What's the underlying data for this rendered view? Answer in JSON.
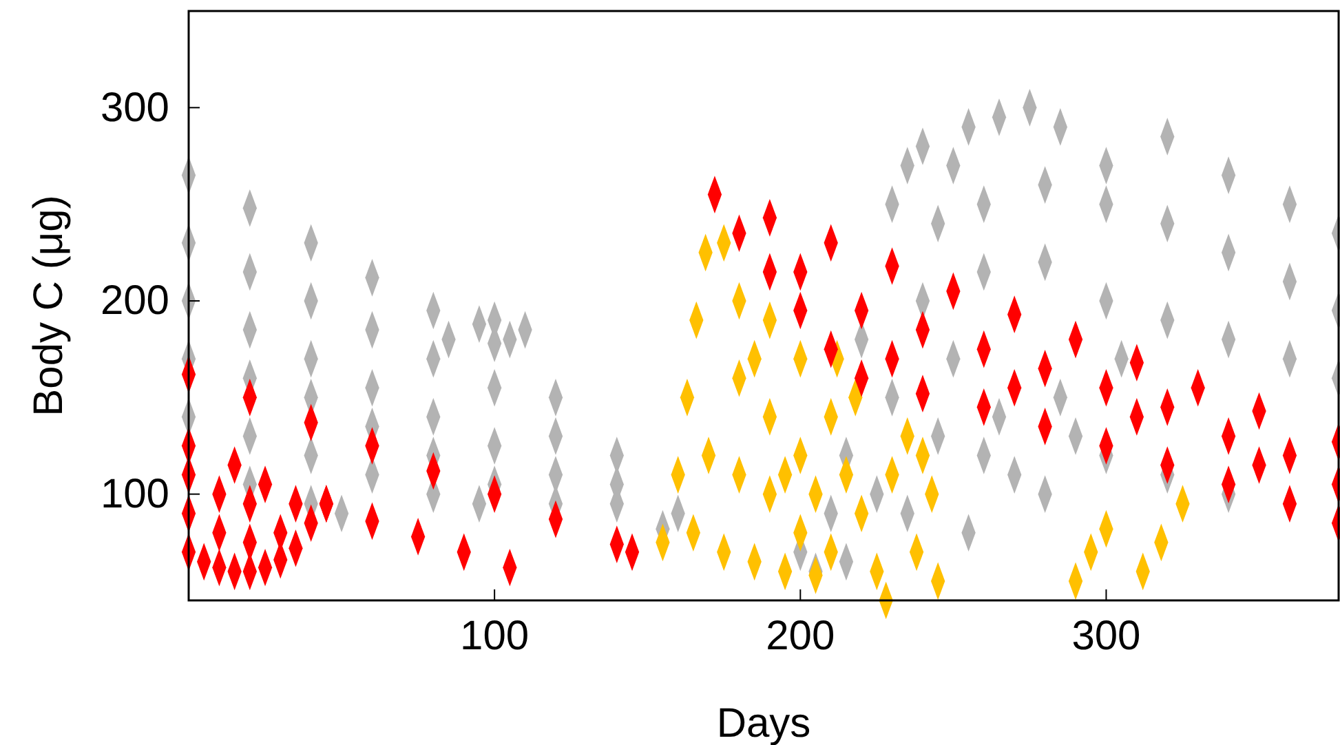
{
  "chart_data": {
    "type": "scatter",
    "xlabel": "Days",
    "ylabel": "Body C (μg)",
    "xlim": [
      0,
      376
    ],
    "ylim": [
      45,
      350
    ],
    "xticks": [
      100,
      200,
      300
    ],
    "yticks": [
      100,
      200,
      300
    ],
    "grid": false,
    "marker": "diamond",
    "series": [
      {
        "color": "#b3b3b3",
        "x": [
          0,
          20,
          40,
          60,
          80,
          100,
          120,
          140,
          160,
          0,
          20,
          40,
          60,
          80,
          100,
          120,
          140,
          155,
          0,
          20,
          40,
          60,
          80,
          100,
          120,
          140,
          0,
          20,
          40,
          60,
          80,
          100,
          120,
          0,
          20,
          40,
          60,
          80,
          95,
          20,
          40,
          50,
          85,
          95,
          100,
          105,
          110,
          205,
          215,
          220,
          230,
          235,
          240,
          250,
          255,
          265,
          275,
          285,
          300,
          320,
          340,
          360,
          376,
          245,
          260,
          280,
          300,
          320,
          340,
          360,
          376,
          240,
          260,
          280,
          300,
          320,
          340,
          360,
          376,
          230,
          245,
          250,
          265,
          270,
          280,
          290,
          300,
          320,
          340,
          225,
          235,
          255,
          260,
          285,
          305,
          200,
          210,
          215
        ],
        "values": [
          265,
          248,
          230,
          212,
          195,
          178,
          150,
          120,
          90,
          230,
          215,
          200,
          185,
          170,
          155,
          130,
          105,
          82,
          200,
          185,
          170,
          155,
          140,
          125,
          110,
          95,
          170,
          160,
          150,
          135,
          120,
          105,
          95,
          140,
          130,
          120,
          110,
          100,
          95,
          105,
          95,
          90,
          180,
          188,
          190,
          180,
          185,
          60,
          120,
          180,
          250,
          270,
          280,
          270,
          290,
          295,
          300,
          290,
          270,
          285,
          265,
          250,
          235,
          240,
          250,
          260,
          250,
          240,
          225,
          210,
          195,
          200,
          215,
          220,
          200,
          190,
          180,
          170,
          160,
          150,
          130,
          170,
          140,
          110,
          100,
          130,
          120,
          110,
          100,
          100,
          90,
          80,
          120,
          150,
          170,
          70,
          90,
          65
        ]
      },
      {
        "color": "#ffc000",
        "x": [
          155,
          160,
          163,
          166,
          169,
          175,
          180,
          185,
          190,
          195,
          200,
          205,
          210,
          215,
          218,
          210,
          200,
          190,
          180,
          170,
          165,
          175,
          185,
          195,
          180,
          190,
          200,
          205,
          212,
          220,
          225,
          228,
          230,
          235,
          240,
          243,
          238,
          245,
          290,
          295,
          300,
          312,
          318,
          325
        ],
        "values": [
          75,
          110,
          150,
          190,
          225,
          230,
          200,
          170,
          140,
          110,
          80,
          58,
          70,
          110,
          150,
          140,
          170,
          190,
          160,
          120,
          80,
          70,
          65,
          60,
          110,
          100,
          120,
          100,
          170,
          90,
          60,
          45,
          110,
          130,
          120,
          100,
          70,
          55,
          55,
          70,
          82,
          60,
          75,
          95
        ]
      },
      {
        "color": "#ff0000",
        "x": [
          0,
          0,
          0,
          0,
          5,
          10,
          15,
          20,
          25,
          30,
          35,
          40,
          45,
          10,
          20,
          30,
          10,
          20,
          15,
          25,
          35,
          0,
          20,
          40,
          60,
          80,
          100,
          120,
          140,
          145,
          45,
          60,
          75,
          90,
          105,
          172,
          190,
          210,
          230,
          250,
          270,
          290,
          310,
          330,
          350,
          376,
          180,
          190,
          200,
          210,
          220,
          240,
          260,
          280,
          300,
          320,
          340,
          360,
          376,
          200,
          220,
          240,
          260,
          280,
          300,
          320,
          340,
          360,
          376,
          230,
          270,
          310,
          350
        ],
        "values": [
          70,
          90,
          110,
          125,
          65,
          62,
          60,
          60,
          62,
          66,
          72,
          85,
          95,
          80,
          75,
          80,
          100,
          95,
          115,
          105,
          95,
          162,
          150,
          137,
          125,
          112,
          100,
          87,
          74,
          70,
          95,
          86,
          78,
          70,
          62,
          255,
          243,
          230,
          218,
          205,
          193,
          180,
          168,
          155,
          143,
          127,
          235,
          215,
          195,
          175,
          160,
          152,
          145,
          135,
          125,
          115,
          105,
          95,
          85,
          215,
          195,
          185,
          175,
          165,
          155,
          145,
          130,
          120,
          105,
          170,
          155,
          140,
          115
        ]
      }
    ]
  }
}
